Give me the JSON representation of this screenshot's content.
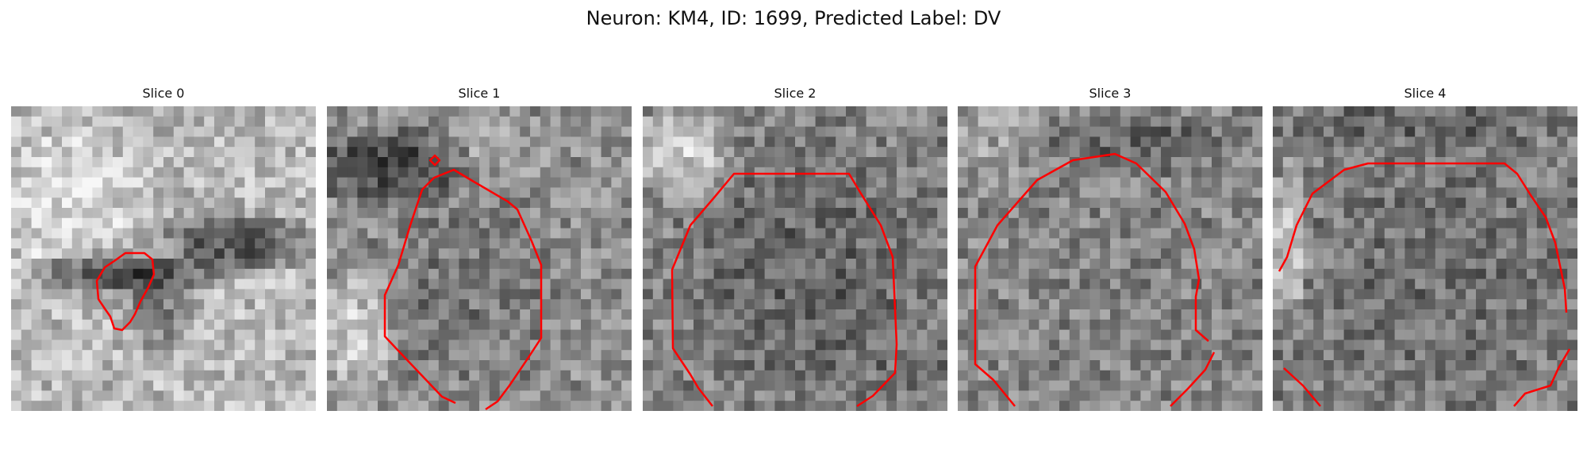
{
  "figure": {
    "title": "Neuron: KM4, ID: 1699, Predicted Label: DV"
  },
  "panels": [
    {
      "title": "Slice 0"
    },
    {
      "title": "Slice 1"
    },
    {
      "title": "Slice 2"
    },
    {
      "title": "Slice 3"
    },
    {
      "title": "Slice 4"
    }
  ],
  "colors": {
    "contour": "#ff0000",
    "background": "#ffffff"
  }
}
